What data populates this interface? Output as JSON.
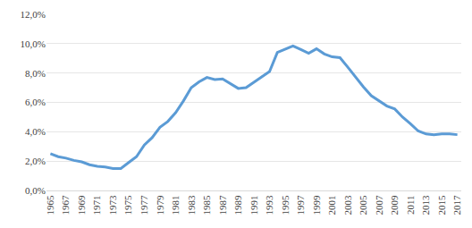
{
  "chart_data": {
    "type": "line",
    "x": [
      1965,
      1966,
      1967,
      1968,
      1969,
      1970,
      1971,
      1972,
      1973,
      1974,
      1975,
      1976,
      1977,
      1978,
      1979,
      1980,
      1981,
      1982,
      1983,
      1984,
      1985,
      1986,
      1987,
      1988,
      1989,
      1990,
      1991,
      1992,
      1993,
      1994,
      1995,
      1996,
      1997,
      1998,
      1999,
      2000,
      2001,
      2002,
      2003,
      2004,
      2005,
      2006,
      2007,
      2008,
      2009,
      2010,
      2011,
      2012,
      2013,
      2014,
      2015,
      2016,
      2017
    ],
    "values": [
      2.5,
      2.3,
      2.2,
      2.05,
      1.95,
      1.75,
      1.65,
      1.6,
      1.5,
      1.5,
      1.9,
      2.3,
      3.1,
      3.6,
      4.3,
      4.7,
      5.3,
      6.1,
      7.0,
      7.4,
      7.7,
      7.55,
      7.6,
      7.25,
      6.95,
      7.0,
      7.35,
      7.75,
      8.1,
      9.4,
      9.65,
      9.85,
      9.6,
      9.35,
      9.65,
      9.3,
      9.1,
      9.05,
      8.4,
      7.7,
      7.05,
      6.45,
      6.1,
      5.75,
      5.55,
      5.0,
      4.55,
      4.05,
      3.85,
      3.8,
      3.85,
      3.85,
      3.8
    ],
    "color": "#5b9bd5",
    "xlim": [
      1964.5,
      2017.5
    ],
    "xticks": [
      1965,
      1967,
      1969,
      1971,
      1973,
      1975,
      1977,
      1979,
      1981,
      1983,
      1985,
      1987,
      1989,
      1991,
      1993,
      1995,
      1997,
      1999,
      2001,
      2003,
      2005,
      2007,
      2009,
      2011,
      2013,
      2015,
      2017
    ],
    "ylim": [
      0,
      12
    ],
    "yticks": [
      {
        "value": 0,
        "label": "0,0%"
      },
      {
        "value": 2,
        "label": "2,0%"
      },
      {
        "value": 4,
        "label": "4,0%"
      },
      {
        "value": 6,
        "label": "6,0%"
      },
      {
        "value": 8,
        "label": "8,0%"
      },
      {
        "value": 10,
        "label": "10,0%"
      },
      {
        "value": 12,
        "label": "12,0%"
      }
    ],
    "grid": true
  }
}
